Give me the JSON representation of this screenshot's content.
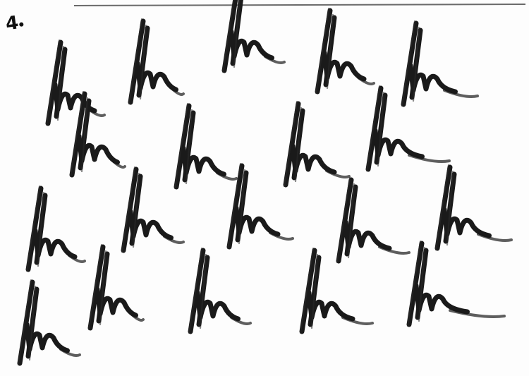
{
  "sheet": {
    "item_number": "4",
    "ink_color": "#1a1a1a",
    "paper_color": "#fdfdfd",
    "top_rule_color": "#6a6a6a",
    "rows_of_marks": [
      5,
      4,
      5,
      5
    ],
    "total_marks": 19
  }
}
